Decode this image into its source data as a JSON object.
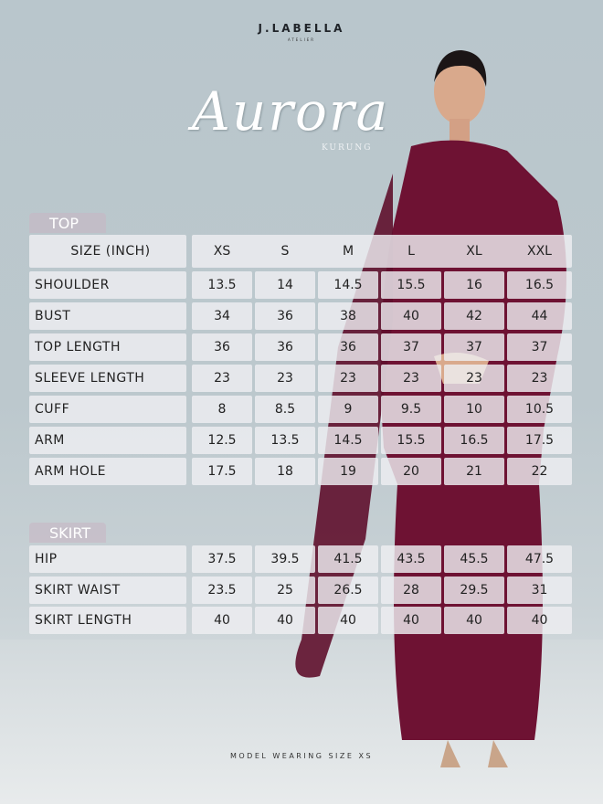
{
  "brand": {
    "name": "J.LABELLA",
    "sub": "ATELIER"
  },
  "title": "Aurora",
  "subtitle": "KURUNG",
  "colors": {
    "dress": "#6e1233",
    "background": "#bcc8cd"
  },
  "sizes": [
    "XS",
    "S",
    "M",
    "L",
    "XL",
    "XXL"
  ],
  "top": {
    "label": "TOP",
    "header": "SIZE (INCH)",
    "rows": [
      {
        "name": "SHOULDER",
        "values": [
          "13.5",
          "14",
          "14.5",
          "15.5",
          "16",
          "16.5"
        ]
      },
      {
        "name": "BUST",
        "values": [
          "34",
          "36",
          "38",
          "40",
          "42",
          "44"
        ]
      },
      {
        "name": "TOP LENGTH",
        "values": [
          "36",
          "36",
          "36",
          "37",
          "37",
          "37"
        ]
      },
      {
        "name": "SLEEVE LENGTH",
        "values": [
          "23",
          "23",
          "23",
          "23",
          "23",
          "23"
        ]
      },
      {
        "name": "CUFF",
        "values": [
          "8",
          "8.5",
          "9",
          "9.5",
          "10",
          "10.5"
        ]
      },
      {
        "name": "ARM",
        "values": [
          "12.5",
          "13.5",
          "14.5",
          "15.5",
          "16.5",
          "17.5"
        ]
      },
      {
        "name": "ARM HOLE",
        "values": [
          "17.5",
          "18",
          "19",
          "20",
          "21",
          "22"
        ]
      }
    ]
  },
  "skirt": {
    "label": "SKIRT",
    "rows": [
      {
        "name": "HIP",
        "values": [
          "37.5",
          "39.5",
          "41.5",
          "43.5",
          "45.5",
          "47.5"
        ]
      },
      {
        "name": "SKIRT WAIST",
        "values": [
          "23.5",
          "25",
          "26.5",
          "28",
          "29.5",
          "31"
        ]
      },
      {
        "name": "SKIRT LENGTH",
        "values": [
          "40",
          "40",
          "40",
          "40",
          "40",
          "40"
        ]
      }
    ]
  },
  "footer": "MODEL WEARING SIZE XS"
}
